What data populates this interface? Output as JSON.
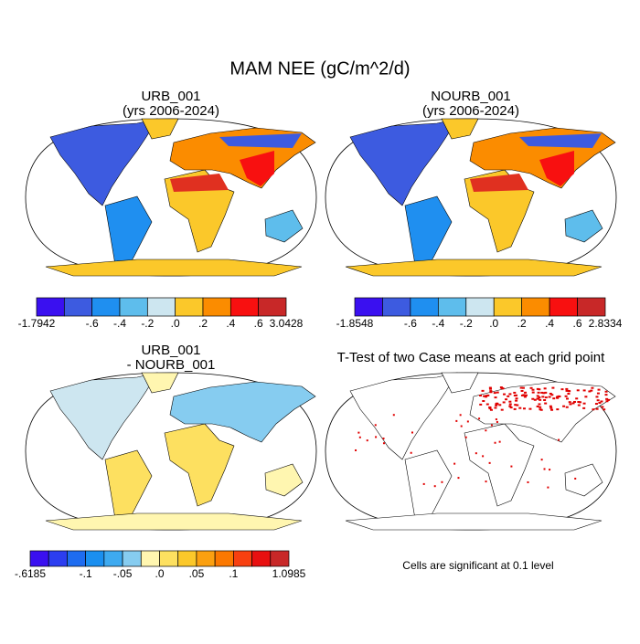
{
  "title": "MAM NEE (gC/m^2/d)",
  "panels": [
    {
      "title": "URB_001",
      "subtitle": "(yrs 2006-2024)",
      "colorbar": {
        "colors": [
          "#3a10f0",
          "#3d5be0",
          "#1f8ff0",
          "#5ebdec",
          "#cde6f0",
          "#fbc82a",
          "#fb8c00",
          "#f81010",
          "#c82828"
        ],
        "labels": [
          "-1.7942",
          null,
          "-.6",
          "-.4",
          "-.2",
          ".0",
          ".2",
          ".4",
          ".6",
          "3.0428"
        ]
      }
    },
    {
      "title": "NOURB_001",
      "subtitle": "(yrs 2006-2024)",
      "colorbar": {
        "colors": [
          "#3a10f0",
          "#3d5be0",
          "#1f8ff0",
          "#5ebdec",
          "#cde6f0",
          "#fbc82a",
          "#fb8c00",
          "#f81010",
          "#c82828"
        ],
        "labels": [
          "-1.8548",
          null,
          "-.6",
          "-.4",
          "-.2",
          ".0",
          ".2",
          ".4",
          ".6",
          "2.8334"
        ]
      }
    },
    {
      "title": "URB_001",
      "subtitle": "- NOURB_001",
      "colorbar": {
        "colors": [
          "#3a10f0",
          "#2c3ef0",
          "#1e6cf0",
          "#1a8ff0",
          "#3eaaf0",
          "#86ccf0",
          "#fff6b0",
          "#fde060",
          "#fbc82a",
          "#fba010",
          "#fb7800",
          "#f84010",
          "#e81010",
          "#c82828"
        ],
        "labels": [
          "-.6185",
          null,
          null,
          "-.1",
          null,
          "-.05",
          null,
          ".0",
          null,
          ".05",
          null,
          ".1",
          null,
          null,
          "1.0985"
        ]
      }
    },
    {
      "title": "T-Test of two Case means at each grid point",
      "footnote": "Cells are significant at 0.1 level"
    }
  ]
}
